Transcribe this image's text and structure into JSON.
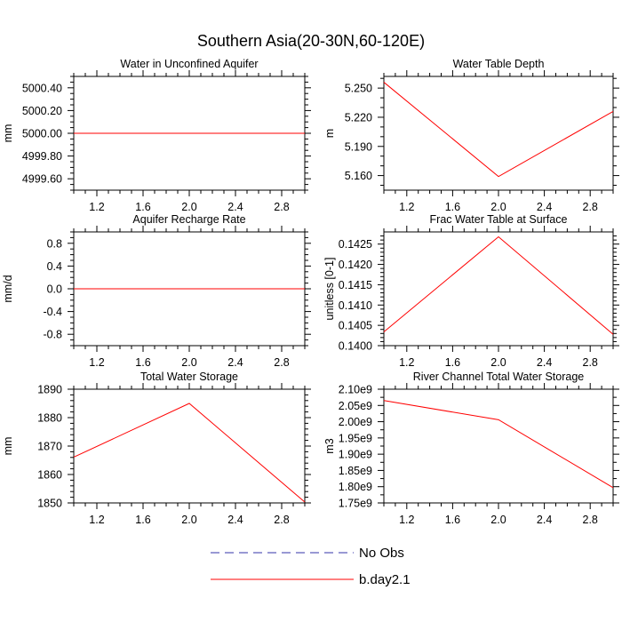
{
  "title": "Southern Asia(20-30N,60-120E)",
  "colors": {
    "model": "#ff0000",
    "obs": "#3333aa",
    "axis": "#000000"
  },
  "legend": {
    "items": [
      {
        "label": "No Obs",
        "style": "dashed",
        "color": "#3333aa"
      },
      {
        "label": "b.day2.1",
        "style": "solid",
        "color": "#ff0000"
      }
    ]
  },
  "chart_data": [
    {
      "type": "line",
      "title": "Water in Unconfined Aquifer",
      "ylabel": "mm",
      "xlim": [
        1.0,
        3.0
      ],
      "ylim": [
        4999.5,
        5000.5
      ],
      "xticks": [
        1.2,
        1.6,
        2.0,
        2.4,
        2.8
      ],
      "xtick_labels": [
        "1.2",
        "1.6",
        "2.0",
        "2.4",
        "2.8"
      ],
      "yticks": [
        4999.6,
        4999.8,
        5000.0,
        5000.2,
        5000.4
      ],
      "ytick_labels": [
        "4999.60",
        "4999.80",
        "5000.00",
        "5000.20",
        "5000.40"
      ],
      "yminor": [
        4999.5,
        4999.55,
        4999.65,
        4999.7,
        4999.75,
        4999.85,
        4999.9,
        4999.95,
        5000.05,
        5000.1,
        5000.15,
        5000.25,
        5000.3,
        5000.35,
        5000.45,
        5000.5
      ],
      "series": [
        {
          "name": "b.day2.1",
          "x": [
            1,
            2,
            3
          ],
          "y": [
            5000.0,
            5000.0,
            5000.0
          ]
        }
      ]
    },
    {
      "type": "line",
      "title": "Water Table Depth",
      "ylabel": "m",
      "xlim": [
        1.0,
        3.0
      ],
      "ylim": [
        5.145,
        5.262
      ],
      "xticks": [
        1.2,
        1.6,
        2.0,
        2.4,
        2.8
      ],
      "xtick_labels": [
        "1.2",
        "1.6",
        "2.0",
        "2.4",
        "2.8"
      ],
      "yticks": [
        5.16,
        5.19,
        5.22,
        5.25
      ],
      "ytick_labels": [
        "5.160",
        "5.190",
        "5.220",
        "5.250"
      ],
      "yminor": [
        5.15,
        5.17,
        5.18,
        5.2,
        5.21,
        5.23,
        5.24,
        5.26
      ],
      "series": [
        {
          "name": "b.day2.1",
          "x": [
            1,
            2,
            3
          ],
          "y": [
            5.256,
            5.159,
            5.226
          ]
        }
      ]
    },
    {
      "type": "line",
      "title": "Aquifer Recharge Rate",
      "ylabel": "mm/d",
      "xlim": [
        1.0,
        3.0
      ],
      "ylim": [
        -1.0,
        1.0
      ],
      "xticks": [
        1.2,
        1.6,
        2.0,
        2.4,
        2.8
      ],
      "xtick_labels": [
        "1.2",
        "1.6",
        "2.0",
        "2.4",
        "2.8"
      ],
      "yticks": [
        -0.8,
        -0.4,
        0.0,
        0.4,
        0.8
      ],
      "ytick_labels": [
        "-0.8",
        "-0.4",
        "0.0",
        "0.4",
        "0.8"
      ],
      "yminor": [
        -1.0,
        -0.9,
        -0.7,
        -0.6,
        -0.5,
        -0.3,
        -0.2,
        -0.1,
        0.1,
        0.2,
        0.3,
        0.5,
        0.6,
        0.7,
        0.9,
        1.0
      ],
      "series": [
        {
          "name": "b.day2.1",
          "x": [
            1,
            2,
            3
          ],
          "y": [
            0.0,
            0.0,
            0.0
          ]
        }
      ]
    },
    {
      "type": "line",
      "title": "Frac Water Table at Surface",
      "ylabel": "unitless [0-1]",
      "xlim": [
        1.0,
        3.0
      ],
      "ylim": [
        0.14,
        0.1428
      ],
      "xticks": [
        1.2,
        1.6,
        2.0,
        2.4,
        2.8
      ],
      "xtick_labels": [
        "1.2",
        "1.6",
        "2.0",
        "2.4",
        "2.8"
      ],
      "yticks": [
        0.14,
        0.1405,
        0.141,
        0.1415,
        0.142,
        0.1425
      ],
      "ytick_labels": [
        "0.1400",
        "0.1405",
        "0.1410",
        "0.1415",
        "0.1420",
        "0.1425"
      ],
      "yminor": [
        0.1401,
        0.1402,
        0.1403,
        0.1404,
        0.1406,
        0.1407,
        0.1408,
        0.1409,
        0.1411,
        0.1412,
        0.1413,
        0.1414,
        0.1416,
        0.1417,
        0.1418,
        0.1419,
        0.1421,
        0.1422,
        0.1423,
        0.1424,
        0.1426,
        0.1427
      ],
      "series": [
        {
          "name": "b.day2.1",
          "x": [
            1,
            2,
            3
          ],
          "y": [
            0.14034,
            0.14268,
            0.14028
          ]
        }
      ]
    },
    {
      "type": "line",
      "title": "Total Water Storage",
      "ylabel": "mm",
      "xlim": [
        1.0,
        3.0
      ],
      "ylim": [
        1850,
        1890
      ],
      "xticks": [
        1.2,
        1.6,
        2.0,
        2.4,
        2.8
      ],
      "xtick_labels": [
        "1.2",
        "1.6",
        "2.0",
        "2.4",
        "2.8"
      ],
      "yticks": [
        1850,
        1860,
        1870,
        1880,
        1890
      ],
      "ytick_labels": [
        "1850",
        "1860",
        "1870",
        "1880",
        "1890"
      ],
      "yminor": [
        1852,
        1854,
        1856,
        1858,
        1862,
        1864,
        1866,
        1868,
        1872,
        1874,
        1876,
        1878,
        1882,
        1884,
        1886,
        1888
      ],
      "series": [
        {
          "name": "b.day2.1",
          "x": [
            1,
            2,
            3
          ],
          "y": [
            1866.1,
            1885.0,
            1850.3
          ]
        }
      ]
    },
    {
      "type": "line",
      "title": "River Channel Total Water Storage",
      "ylabel": "m3",
      "xlim": [
        1.0,
        3.0
      ],
      "ylim": [
        1750000000.0,
        2100000000.0
      ],
      "xticks": [
        1.2,
        1.6,
        2.0,
        2.4,
        2.8
      ],
      "xtick_labels": [
        "1.2",
        "1.6",
        "2.0",
        "2.4",
        "2.8"
      ],
      "yticks": [
        1750000000.0,
        1800000000.0,
        1850000000.0,
        1900000000.0,
        1950000000.0,
        2000000000.0,
        2050000000.0,
        2100000000.0
      ],
      "ytick_labels": [
        "1.75e9",
        "1.80e9",
        "1.85e9",
        "1.90e9",
        "1.95e9",
        "2.00e9",
        "2.05e9",
        "2.10e9"
      ],
      "yminor": [
        1775000000.0,
        1825000000.0,
        1875000000.0,
        1925000000.0,
        1975000000.0,
        2025000000.0,
        2075000000.0
      ],
      "series": [
        {
          "name": "b.day2.1",
          "x": [
            1,
            2,
            3
          ],
          "y": [
            2065000000.0,
            2006000000.0,
            1797000000.0
          ]
        }
      ]
    }
  ]
}
